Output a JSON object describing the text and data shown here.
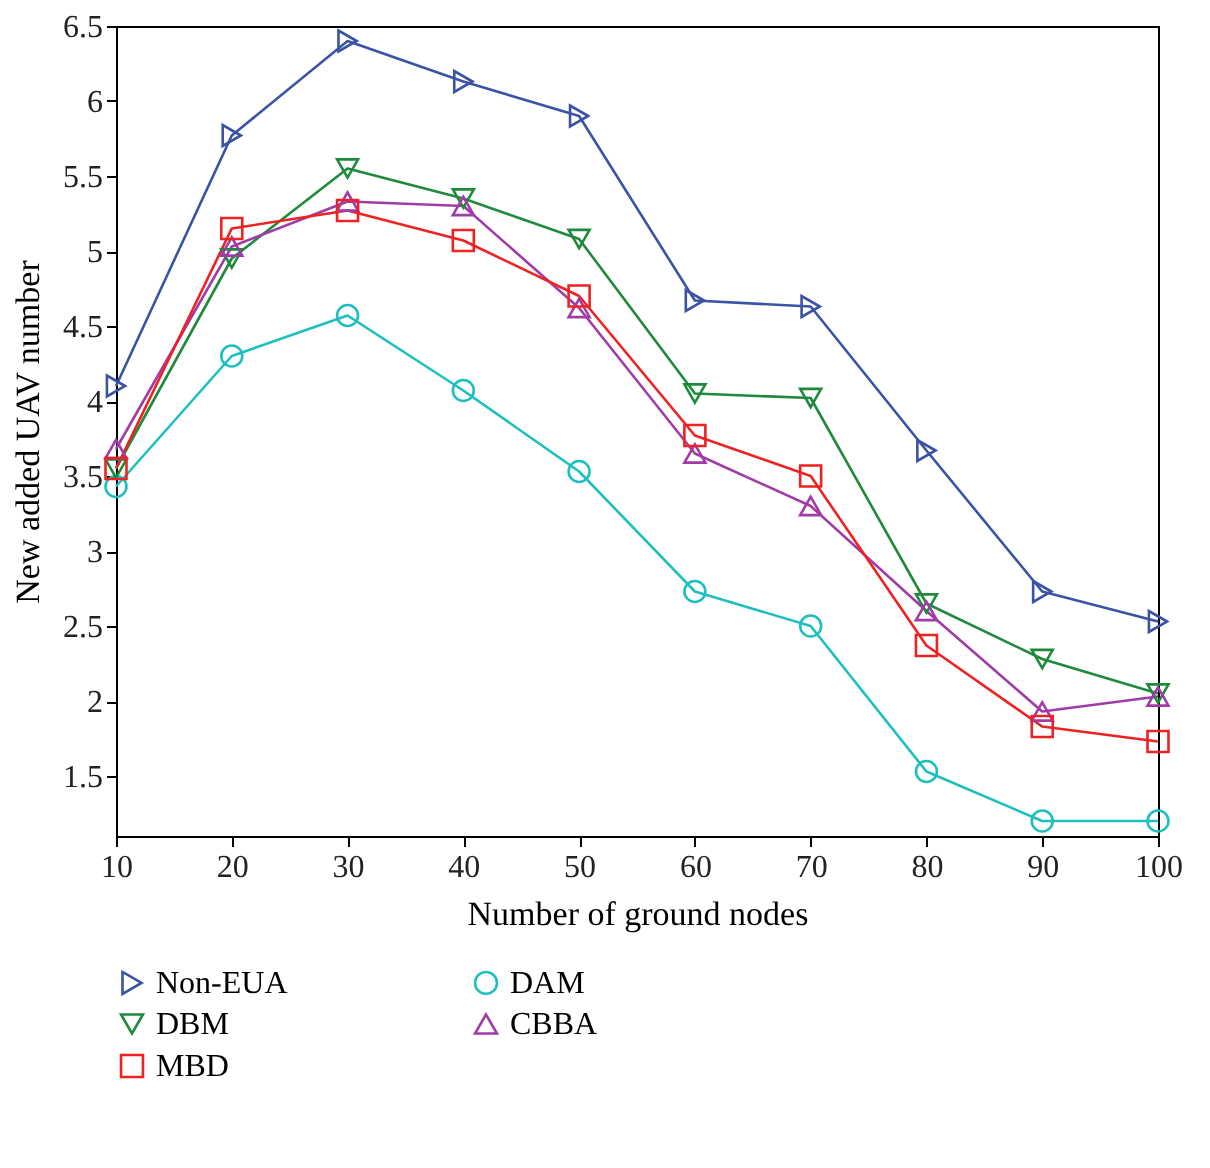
{
  "chart_data": {
    "type": "line",
    "xlabel": "Number of ground nodes",
    "ylabel": "New added UAV number",
    "x": [
      10,
      20,
      30,
      40,
      50,
      60,
      70,
      80,
      90,
      100
    ],
    "xlim": [
      10,
      100
    ],
    "xticks": [
      10,
      20,
      30,
      40,
      50,
      60,
      70,
      80,
      90,
      100
    ],
    "ylim": [
      1.1,
      6.5
    ],
    "yticks": [
      1.5,
      2,
      2.5,
      3,
      3.5,
      4,
      4.5,
      5,
      5.5,
      6,
      6.5
    ],
    "grid": false,
    "legend": "bottom",
    "line_style": "solid",
    "series": [
      {
        "name": "Non-EUA",
        "color": "#3a53a4",
        "marker": "triangle-right",
        "values": [
          4.1,
          5.77,
          6.4,
          6.13,
          5.9,
          4.67,
          4.63,
          3.67,
          2.73,
          2.53
        ]
      },
      {
        "name": "DAM",
        "color": "#1fbfbf",
        "marker": "circle",
        "values": [
          3.43,
          4.3,
          4.57,
          4.07,
          3.53,
          2.73,
          2.5,
          1.53,
          1.2,
          1.2
        ]
      },
      {
        "name": "DBM",
        "color": "#1f8a3c",
        "marker": "triangle-down",
        "values": [
          3.55,
          4.95,
          5.55,
          5.35,
          5.08,
          4.05,
          4.02,
          2.65,
          2.28,
          2.05
        ]
      },
      {
        "name": "CBBA",
        "color": "#a03ca8",
        "marker": "triangle-up",
        "values": [
          3.68,
          5.03,
          5.33,
          5.3,
          4.62,
          3.65,
          3.3,
          2.6,
          1.93,
          2.03
        ]
      },
      {
        "name": "MBD",
        "color": "#ee2222",
        "marker": "square",
        "values": [
          3.55,
          5.15,
          5.27,
          5.07,
          4.7,
          3.77,
          3.5,
          2.37,
          1.83,
          1.73
        ]
      }
    ]
  }
}
